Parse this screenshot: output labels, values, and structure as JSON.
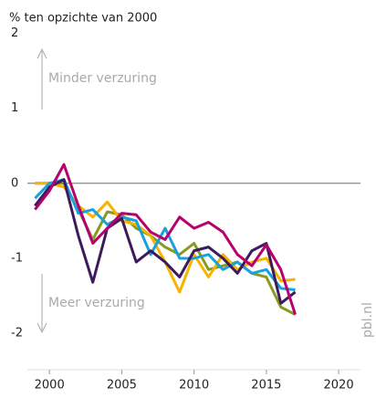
{
  "chart_data": {
    "type": "line",
    "title": "% ten opzichte van 2000",
    "annotations": [
      "Minder verzuring",
      "Meer verzuring"
    ],
    "source": "pbl.nl",
    "x": [
      1999,
      2000,
      2001,
      2002,
      2003,
      2004,
      2005,
      2006,
      2007,
      2008,
      2009,
      2010,
      2011,
      2012,
      2013,
      2014,
      2015,
      2016,
      2017
    ],
    "series": [
      {
        "color": "#8a9a1e",
        "values": [
          0,
          0,
          0,
          -0.35,
          -0.75,
          -0.38,
          -0.42,
          -0.6,
          -0.7,
          -0.85,
          -0.95,
          -0.8,
          -1.15,
          -1.1,
          -1.05,
          -1.2,
          -1.25,
          -1.65,
          -1.75
        ]
      },
      {
        "color": "#f5b400",
        "values": [
          0,
          0,
          -0.05,
          -0.3,
          -0.45,
          -0.25,
          -0.5,
          -0.55,
          -0.7,
          -1.05,
          -1.45,
          -0.95,
          -1.25,
          -0.95,
          -1.15,
          -1.05,
          -1.0,
          -1.3,
          -1.28
        ]
      },
      {
        "color": "#1aa0dc",
        "values": [
          -0.2,
          0,
          0.05,
          -0.4,
          -0.35,
          -0.55,
          -0.45,
          -0.5,
          -0.95,
          -0.6,
          -1.0,
          -1.0,
          -0.95,
          -1.15,
          -1.05,
          -1.2,
          -1.15,
          -1.4,
          -1.42
        ]
      },
      {
        "color": "#3c1a5b",
        "values": [
          -0.3,
          -0.05,
          0.05,
          -0.7,
          -1.32,
          -0.6,
          -0.47,
          -1.05,
          -0.9,
          -1.05,
          -1.25,
          -0.9,
          -0.85,
          -1.0,
          -1.2,
          -0.9,
          -0.8,
          -1.6,
          -1.45
        ]
      },
      {
        "color": "#b5006e",
        "values": [
          -0.35,
          -0.1,
          0.25,
          -0.3,
          -0.8,
          -0.6,
          -0.4,
          -0.42,
          -0.65,
          -0.75,
          -0.45,
          -0.6,
          -0.52,
          -0.65,
          -0.95,
          -1.1,
          -0.82,
          -1.15,
          -1.75
        ]
      }
    ],
    "xlim": [
      1998.6,
      2020.5
    ],
    "xticks": [
      2000,
      2005,
      2010,
      2015,
      2020
    ],
    "ylim": [
      -2.4,
      2.2
    ],
    "yticks": [
      -2,
      -1,
      0,
      1,
      2
    ]
  }
}
